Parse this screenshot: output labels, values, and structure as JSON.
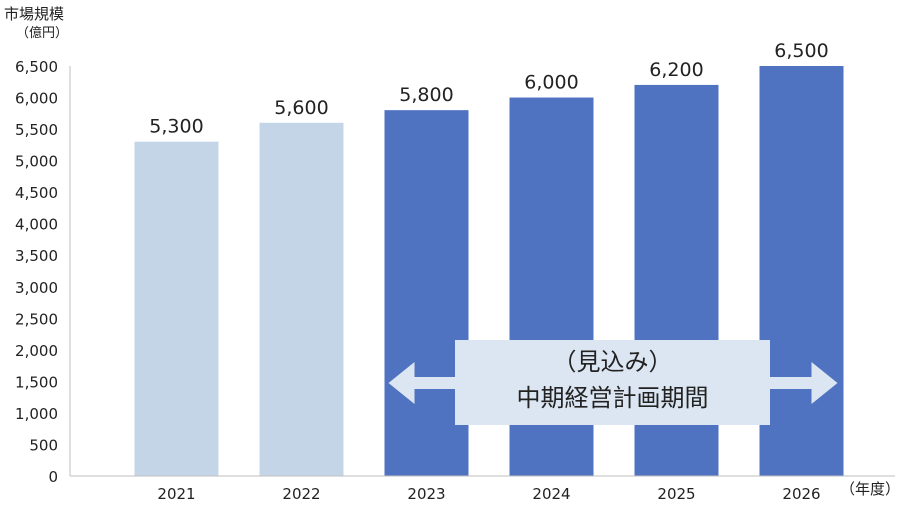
{
  "chart_data": {
    "type": "bar",
    "ylabel": "市場規模",
    "yunit": "（億円）",
    "xunit": "（年度）",
    "categories": [
      "2021",
      "2022",
      "2023",
      "2024",
      "2025",
      "2026"
    ],
    "values": [
      5300,
      5600,
      5800,
      6000,
      6200,
      6500
    ],
    "value_labels": [
      "5,300",
      "5,600",
      "5,800",
      "6,000",
      "6,200",
      "6,500"
    ],
    "bar_colors": [
      "#c5d5e8",
      "#c5d5e8",
      "#4f73c0",
      "#4f73c0",
      "#4f73c0",
      "#4f73c0"
    ],
    "ylim": [
      0,
      6500
    ],
    "yticks": [
      0,
      500,
      1000,
      1500,
      2000,
      2500,
      3000,
      3500,
      4000,
      4500,
      5000,
      5500,
      6000,
      6500
    ],
    "ytick_labels": [
      "0",
      "500",
      "1,000",
      "1,500",
      "2,000",
      "2,500",
      "3,000",
      "3,500",
      "4,000",
      "4,500",
      "5,000",
      "5,500",
      "6,000",
      "6,500"
    ],
    "grid": false,
    "annotation": {
      "line1": "（見込み）",
      "line2": "中期経営計画期間",
      "arrow": "double-headed",
      "span_categories": [
        "2023",
        "2026"
      ]
    }
  },
  "colors": {
    "actual": "#c5d5e8",
    "forecast": "#4f73c0",
    "annotation_fill": "#dce6f2",
    "axis": "#bfbfbf"
  }
}
